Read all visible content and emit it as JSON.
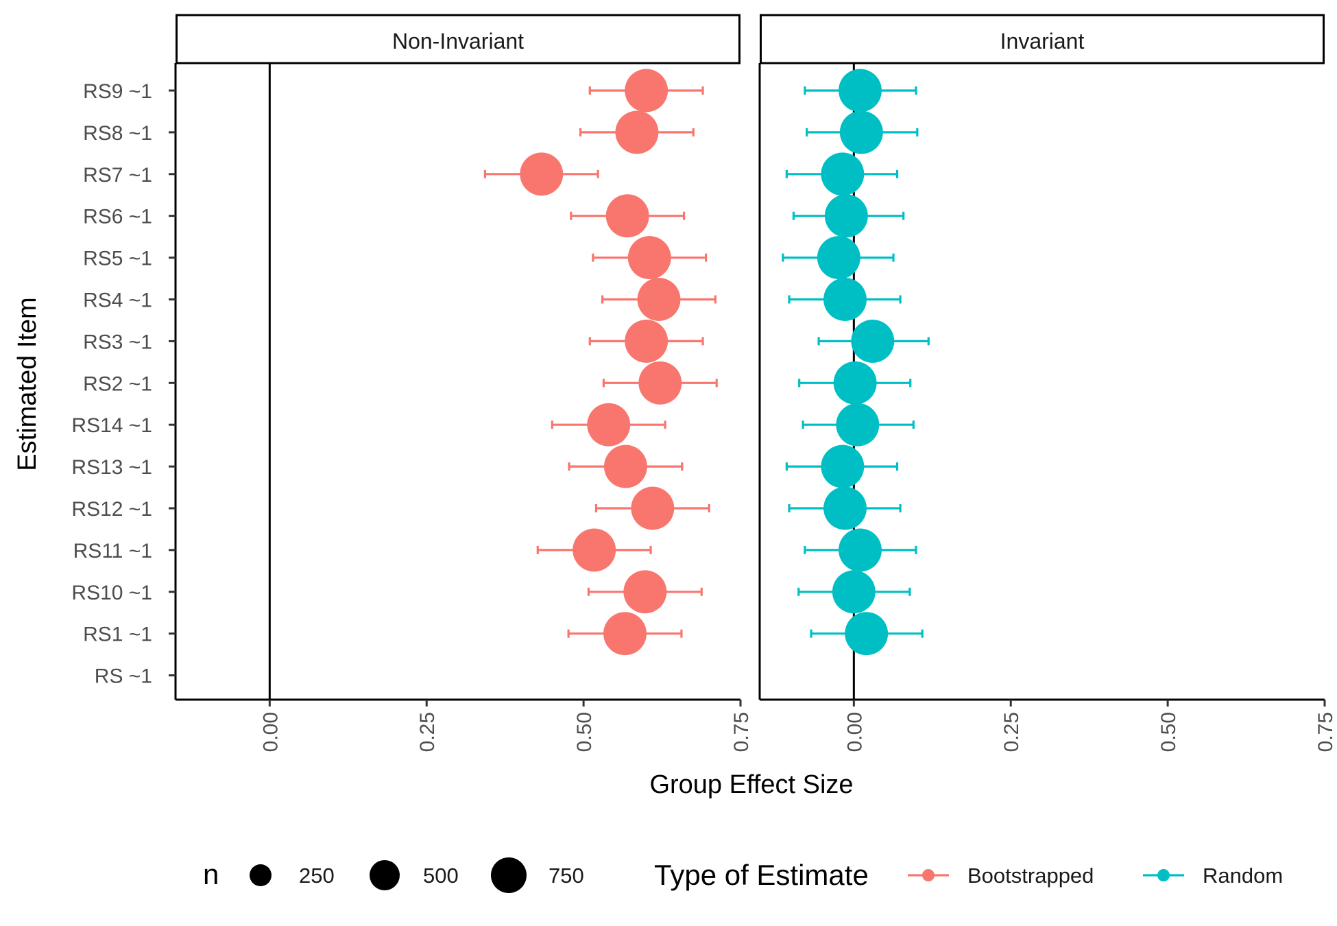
{
  "chart_data": {
    "type": "scatter",
    "subtype": "dot-and-whisker, faceted",
    "xlabel": "Group Effect Size",
    "ylabel": "Estimated Item",
    "xlim": [
      -0.15,
      0.75
    ],
    "x_ticks": [
      "0.00",
      "0.25",
      "0.50",
      "0.75"
    ],
    "x_tick_values": [
      0,
      0.25,
      0.5,
      0.75
    ],
    "vertical_reference_line": 0,
    "grid": false,
    "categories": [
      "RS9 ~1",
      "RS8 ~1",
      "RS7 ~1",
      "RS6 ~1",
      "RS5 ~1",
      "RS4 ~1",
      "RS3 ~1",
      "RS2 ~1",
      "RS14 ~1",
      "RS13 ~1",
      "RS12 ~1",
      "RS11 ~1",
      "RS10 ~1",
      "RS1 ~1",
      "RS ~1"
    ],
    "facets": [
      {
        "label": "Non-Invariant",
        "series_name": "Bootstrapped",
        "color": "#F8766D",
        "points": [
          {
            "item": "RS9 ~1",
            "x": 0.6,
            "lo": 0.51,
            "hi": 0.69,
            "n": 750
          },
          {
            "item": "RS8 ~1",
            "x": 0.585,
            "lo": 0.495,
            "hi": 0.675,
            "n": 750
          },
          {
            "item": "RS7 ~1",
            "x": 0.433,
            "lo": 0.343,
            "hi": 0.523,
            "n": 750
          },
          {
            "item": "RS6 ~1",
            "x": 0.57,
            "lo": 0.48,
            "hi": 0.66,
            "n": 750
          },
          {
            "item": "RS5 ~1",
            "x": 0.605,
            "lo": 0.515,
            "hi": 0.695,
            "n": 750
          },
          {
            "item": "RS4 ~1",
            "x": 0.62,
            "lo": 0.53,
            "hi": 0.71,
            "n": 750
          },
          {
            "item": "RS3 ~1",
            "x": 0.6,
            "lo": 0.51,
            "hi": 0.69,
            "n": 750
          },
          {
            "item": "RS2 ~1",
            "x": 0.622,
            "lo": 0.532,
            "hi": 0.712,
            "n": 750
          },
          {
            "item": "RS14 ~1",
            "x": 0.54,
            "lo": 0.45,
            "hi": 0.63,
            "n": 750
          },
          {
            "item": "RS13 ~1",
            "x": 0.567,
            "lo": 0.477,
            "hi": 0.657,
            "n": 750
          },
          {
            "item": "RS12 ~1",
            "x": 0.61,
            "lo": 0.52,
            "hi": 0.7,
            "n": 750
          },
          {
            "item": "RS11 ~1",
            "x": 0.517,
            "lo": 0.427,
            "hi": 0.607,
            "n": 750
          },
          {
            "item": "RS10 ~1",
            "x": 0.598,
            "lo": 0.508,
            "hi": 0.688,
            "n": 750
          },
          {
            "item": "RS1 ~1",
            "x": 0.566,
            "lo": 0.476,
            "hi": 0.656,
            "n": 750
          }
        ]
      },
      {
        "label": "Invariant",
        "series_name": "Random",
        "color": "#00BFC4",
        "points": [
          {
            "item": "RS9 ~1",
            "x": 0.01,
            "lo": -0.078,
            "hi": 0.099,
            "n": 750
          },
          {
            "item": "RS8 ~1",
            "x": 0.012,
            "lo": -0.075,
            "hi": 0.101,
            "n": 750
          },
          {
            "item": "RS7 ~1",
            "x": -0.018,
            "lo": -0.107,
            "hi": 0.069,
            "n": 750
          },
          {
            "item": "RS6 ~1",
            "x": -0.012,
            "lo": -0.096,
            "hi": 0.079,
            "n": 750
          },
          {
            "item": "RS5 ~1",
            "x": -0.024,
            "lo": -0.113,
            "hi": 0.063,
            "n": 750
          },
          {
            "item": "RS4 ~1",
            "x": -0.014,
            "lo": -0.103,
            "hi": 0.074,
            "n": 750
          },
          {
            "item": "RS3 ~1",
            "x": 0.03,
            "lo": -0.056,
            "hi": 0.119,
            "n": 750
          },
          {
            "item": "RS2 ~1",
            "x": 0.002,
            "lo": -0.087,
            "hi": 0.09,
            "n": 750
          },
          {
            "item": "RS14 ~1",
            "x": 0.006,
            "lo": -0.081,
            "hi": 0.095,
            "n": 750
          },
          {
            "item": "RS13 ~1",
            "x": -0.018,
            "lo": -0.107,
            "hi": 0.069,
            "n": 750
          },
          {
            "item": "RS12 ~1",
            "x": -0.014,
            "lo": -0.103,
            "hi": 0.074,
            "n": 750
          },
          {
            "item": "RS11 ~1",
            "x": 0.01,
            "lo": -0.078,
            "hi": 0.099,
            "n": 750
          },
          {
            "item": "RS10 ~1",
            "x": 0,
            "lo": -0.088,
            "hi": 0.089,
            "n": 750
          },
          {
            "item": "RS1 ~1",
            "x": 0.02,
            "lo": -0.068,
            "hi": 0.109,
            "n": 750
          }
        ]
      }
    ],
    "legend": {
      "placement": "bottom",
      "size": {
        "title": "n",
        "entries": [
          {
            "label": "250",
            "value": 250
          },
          {
            "label": "500",
            "value": 500
          },
          {
            "label": "750",
            "value": 750
          }
        ]
      },
      "color": {
        "title": "Type of Estimate",
        "entries": [
          {
            "label": "Bootstrapped",
            "color": "#F8766D"
          },
          {
            "label": "Random",
            "color": "#00BFC4"
          }
        ]
      }
    }
  }
}
